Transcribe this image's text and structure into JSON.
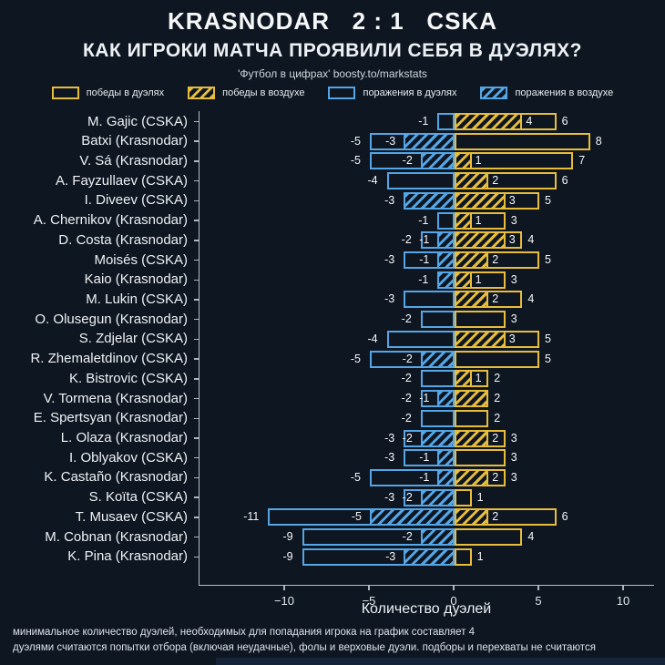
{
  "header": {
    "title": "KRASNODAR   2 : 1   CSKA",
    "subtitle": "КАК ИГРОКИ МАТЧА ПРОЯВИЛИ СЕБЯ В ДУЭЛЯХ?",
    "credit": "'Футбол в цифрах' boosty.to/markstats"
  },
  "legend": [
    {
      "label": "победы в дуэлях",
      "style": "solid",
      "color": "#e8bd3c"
    },
    {
      "label": "победы в воздухе",
      "style": "hatched",
      "color": "#e8bd3c"
    },
    {
      "label": "поражения в дуэлях",
      "style": "solid",
      "color": "#55a6e6"
    },
    {
      "label": "поражения в воздухе",
      "style": "hatched",
      "color": "#55a6e6"
    }
  ],
  "chart_data": {
    "type": "bar",
    "variant": "horizontal-diverging-stacked",
    "title": "KRASNODAR 2 : 1 CSKA — КАК ИГРОКИ МАТЧА ПРОЯВИЛИ СЕБЯ В ДУЭЛЯХ?",
    "xlabel": "Количество дуэлей",
    "x_ticks": [
      -10,
      -5,
      0,
      5,
      10
    ],
    "xlim": [
      -15,
      12
    ],
    "legend_position": "top",
    "grid": false,
    "colors": {
      "wins": "#e8bd3c",
      "losses": "#55a6e6"
    },
    "series_legend": [
      "победы в дуэлях",
      "победы в воздухе",
      "поражения в дуэлях",
      "поражения в воздухе"
    ],
    "players": [
      {
        "name": "M. Gajic (CSKA)",
        "losses_total": -1,
        "losses_air": 0,
        "wins_air": 4,
        "wins_total": 6
      },
      {
        "name": "Batxi (Krasnodar)",
        "losses_total": -5,
        "losses_air": -3,
        "wins_air": 0,
        "wins_total": 8
      },
      {
        "name": "V. Sá (Krasnodar)",
        "losses_total": -5,
        "losses_air": -2,
        "wins_air": 1,
        "wins_total": 7
      },
      {
        "name": "A. Fayzullaev (CSKA)",
        "losses_total": -4,
        "losses_air": 0,
        "wins_air": 2,
        "wins_total": 6
      },
      {
        "name": "I. Diveev (CSKA)",
        "losses_total": -3,
        "losses_air": -3,
        "wins_air": 3,
        "wins_total": 5
      },
      {
        "name": "A. Chernikov (Krasnodar)",
        "losses_total": -1,
        "losses_air": 0,
        "wins_air": 1,
        "wins_total": 3
      },
      {
        "name": "D. Costa (Krasnodar)",
        "losses_total": -2,
        "losses_air": -1,
        "wins_air": 3,
        "wins_total": 4
      },
      {
        "name": "Moisés (CSKA)",
        "losses_total": -3,
        "losses_air": -1,
        "wins_air": 2,
        "wins_total": 5
      },
      {
        "name": "Kaio (Krasnodar)",
        "losses_total": -1,
        "losses_air": -1,
        "wins_air": 1,
        "wins_total": 3
      },
      {
        "name": "M. Lukin (CSKA)",
        "losses_total": -3,
        "losses_air": 0,
        "wins_air": 2,
        "wins_total": 4
      },
      {
        "name": "O. Olusegun (Krasnodar)",
        "losses_total": -2,
        "losses_air": 0,
        "wins_air": 0,
        "wins_total": 3
      },
      {
        "name": "S. Zdjelar (CSKA)",
        "losses_total": -4,
        "losses_air": 0,
        "wins_air": 3,
        "wins_total": 5
      },
      {
        "name": "R. Zhemaletdinov (CSKA)",
        "losses_total": -5,
        "losses_air": -2,
        "wins_air": 0,
        "wins_total": 5
      },
      {
        "name": "K. Bistrovic (CSKA)",
        "losses_total": -2,
        "losses_air": 0,
        "wins_air": 1,
        "wins_total": 2
      },
      {
        "name": "V. Tormena (Krasnodar)",
        "losses_total": -2,
        "losses_air": -1,
        "wins_air": 2,
        "wins_total": 2
      },
      {
        "name": "E. Spertsyan (Krasnodar)",
        "losses_total": -2,
        "losses_air": 0,
        "wins_air": 0,
        "wins_total": 2
      },
      {
        "name": "L. Olaza (Krasnodar)",
        "losses_total": -3,
        "losses_air": -2,
        "wins_air": 2,
        "wins_total": 3
      },
      {
        "name": "I. Oblyakov (CSKA)",
        "losses_total": -3,
        "losses_air": -1,
        "wins_air": 0,
        "wins_total": 3
      },
      {
        "name": "K. Castaño (Krasnodar)",
        "losses_total": -5,
        "losses_air": -1,
        "wins_air": 2,
        "wins_total": 3
      },
      {
        "name": "S. Koïta (CSKA)",
        "losses_total": -3,
        "losses_air": -2,
        "wins_air": 0,
        "wins_total": 1
      },
      {
        "name": "T. Musaev (CSKA)",
        "losses_total": -11,
        "losses_air": -5,
        "wins_air": 2,
        "wins_total": 6
      },
      {
        "name": "M. Cobnan (Krasnodar)",
        "losses_total": -9,
        "losses_air": -2,
        "wins_air": 0,
        "wins_total": 4
      },
      {
        "name": "K. Pina (Krasnodar)",
        "losses_total": -9,
        "losses_air": -3,
        "wins_air": 0,
        "wins_total": 1
      }
    ]
  },
  "footnotes": [
    "минимальное количество дуэлей, необходимых для попадания игрока на график составляет 4",
    "дуэлями считаются попытки отбора (включая неудачные), фолы и верховые дуэли. подборы и перехваты не считаются"
  ]
}
